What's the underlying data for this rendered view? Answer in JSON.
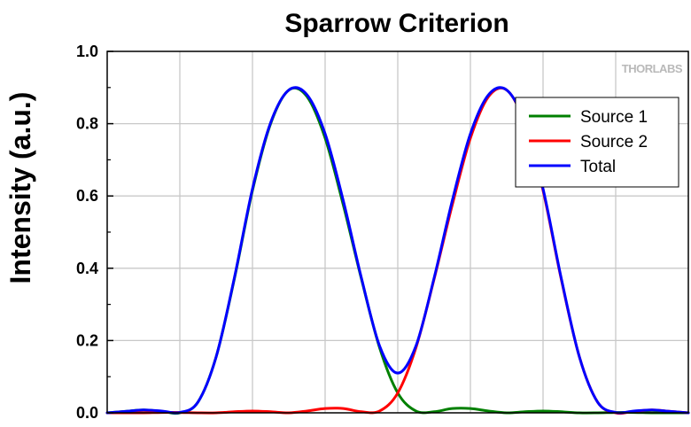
{
  "chart_data": {
    "type": "line",
    "title": "Sparrow Criterion",
    "xlabel": "",
    "ylabel": "Intensity (a.u.)",
    "watermark": "THORLABS",
    "xlim": [
      -3.5,
      4.5
    ],
    "ylim": [
      0,
      1.0
    ],
    "yticks": [
      0.0,
      0.2,
      0.4,
      0.6,
      0.8,
      1.0
    ],
    "ytick_labels": [
      "0.0",
      "0.2",
      "0.4",
      "0.6",
      "0.8",
      "1.0"
    ],
    "grid": true,
    "legend_position": "top-right",
    "series": [
      {
        "name": "Source 1",
        "color": "#008000",
        "x": [
          -3.5,
          -3.25,
          -3.0,
          -2.75,
          -2.5,
          -2.25,
          -2.0,
          -1.75,
          -1.5,
          -1.25,
          -1.0,
          -0.75,
          -0.5,
          -0.25,
          0.0,
          0.25,
          0.5,
          0.75,
          1.0,
          1.25,
          1.5,
          1.75,
          2.0,
          2.25,
          2.5,
          2.75,
          3.0,
          3.25,
          3.5,
          3.75,
          4.0,
          4.25,
          4.5
        ],
        "y": [
          0.0,
          0.004,
          0.008,
          0.004,
          0.0,
          0.03,
          0.155,
          0.37,
          0.615,
          0.8,
          0.893,
          0.875,
          0.76,
          0.575,
          0.37,
          0.18,
          0.055,
          0.005,
          0.003,
          0.012,
          0.012,
          0.005,
          0.0,
          0.003,
          0.005,
          0.003,
          0.0,
          0.0,
          0.001,
          0.001,
          0.0,
          0.0,
          0.0
        ]
      },
      {
        "name": "Source 2",
        "color": "#ff0000",
        "x": [
          -3.5,
          -3.25,
          -3.0,
          -2.75,
          -2.5,
          -2.25,
          -2.0,
          -1.75,
          -1.5,
          -1.25,
          -1.0,
          -0.75,
          -0.5,
          -0.25,
          0.0,
          0.25,
          0.5,
          0.75,
          1.0,
          1.25,
          1.5,
          1.75,
          2.0,
          2.25,
          2.5,
          2.75,
          3.0,
          3.25,
          3.5,
          3.75,
          4.0,
          4.25,
          4.5
        ],
        "y": [
          0.0,
          0.0,
          0.0,
          0.001,
          0.001,
          0.0,
          0.0,
          0.003,
          0.005,
          0.003,
          0.0,
          0.005,
          0.012,
          0.012,
          0.003,
          0.005,
          0.055,
          0.18,
          0.37,
          0.575,
          0.76,
          0.875,
          0.893,
          0.8,
          0.615,
          0.37,
          0.155,
          0.03,
          0.0,
          0.004,
          0.008,
          0.004,
          0.0
        ]
      },
      {
        "name": "Total",
        "color": "#0000ff",
        "x": [
          -3.5,
          -3.25,
          -3.0,
          -2.75,
          -2.5,
          -2.25,
          -2.0,
          -1.75,
          -1.5,
          -1.25,
          -1.0,
          -0.75,
          -0.5,
          -0.25,
          0.0,
          0.25,
          0.5,
          0.75,
          1.0,
          1.25,
          1.5,
          1.75,
          2.0,
          2.25,
          2.5,
          2.75,
          3.0,
          3.25,
          3.5,
          3.75,
          4.0,
          4.25,
          4.5
        ],
        "y": [
          0.0,
          0.004,
          0.008,
          0.005,
          0.001,
          0.03,
          0.155,
          0.373,
          0.62,
          0.803,
          0.893,
          0.88,
          0.772,
          0.587,
          0.373,
          0.185,
          0.11,
          0.185,
          0.373,
          0.587,
          0.772,
          0.88,
          0.893,
          0.803,
          0.62,
          0.373,
          0.155,
          0.03,
          0.001,
          0.005,
          0.008,
          0.004,
          0.0
        ]
      }
    ]
  }
}
